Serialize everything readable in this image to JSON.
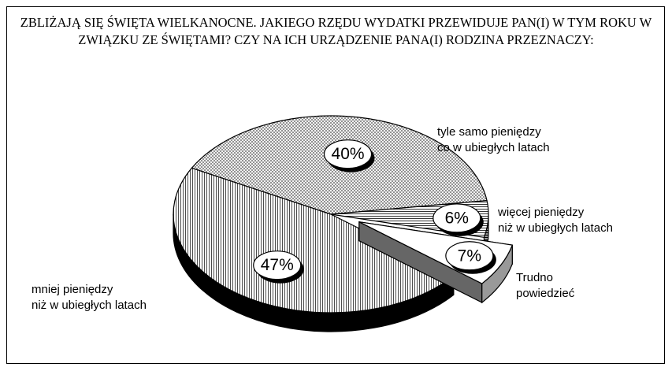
{
  "chart_data": {
    "type": "pie",
    "title": "ZBLIŻAJĄ SIĘ ŚWIĘTA WIELKANOCNE. JAKIEGO RZĘDU WYDATKI PRZEWIDUJE PAN(I) W TYM ROKU W ZWIĄZKU ZE ŚWIĘTAMI? CZY NA ICH URZĄDZENIE PANA(I) RODZINA PRZEZNACZY:",
    "categories": [
      "tyle samo pieniędzy\nco w ubiegłych latach",
      "więcej pieniędzy\nniż w ubiegłych latach",
      "Trudno\npowiedzieć",
      "mniej pieniędzy\nniż w ubiegłych latach"
    ],
    "values": [
      40,
      6,
      7,
      47
    ],
    "value_labels": [
      "40%",
      "6%",
      "7%",
      "47%"
    ]
  }
}
